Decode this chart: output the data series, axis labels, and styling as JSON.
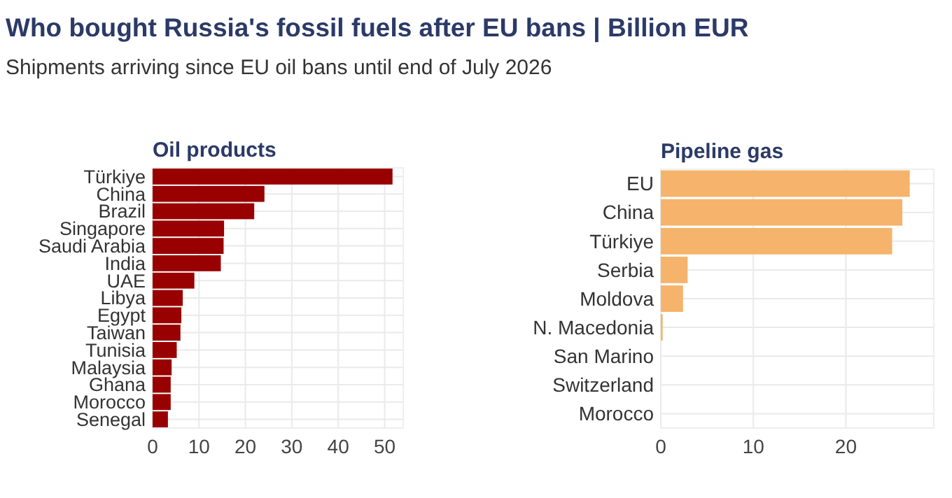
{
  "chart_data": [
    {
      "type": "other",
      "title": "Who bought Russia's fossil fuels after EU bans | Billion EUR",
      "subtitle": "Shipments arriving since EU oil bans until end of July 2026"
    },
    {
      "type": "bar",
      "orientation": "horizontal",
      "title": "Oil products",
      "categories": [
        "Türkiye",
        "China",
        "Brazil",
        "Singapore",
        "Saudi Arabia",
        "India",
        "UAE",
        "Libya",
        "Egypt",
        "Taiwan",
        "Tunisia",
        "Malaysia",
        "Ghana",
        "Morocco",
        "Senegal"
      ],
      "values": [
        51.7,
        24.1,
        21.9,
        15.4,
        15.3,
        14.7,
        9.0,
        6.5,
        6.2,
        6.0,
        5.2,
        4.1,
        3.9,
        3.9,
        3.3
      ],
      "color": "#990000",
      "xlim": [
        0,
        54
      ],
      "xticks": [
        0,
        10,
        20,
        30,
        40,
        50
      ],
      "grid": true
    },
    {
      "type": "bar",
      "orientation": "horizontal",
      "title": "Pipeline gas",
      "categories": [
        "EU",
        "China",
        "Türkiye",
        "Serbia",
        "Moldova",
        "N. Macedonia",
        "San Marino",
        "Switzerland",
        "Morocco"
      ],
      "values": [
        26.9,
        26.1,
        25.0,
        2.9,
        2.4,
        0.2,
        0,
        0,
        0
      ],
      "color": "#f5b36b",
      "xlim": [
        0,
        29.5
      ],
      "xticks": [
        0,
        10,
        20
      ],
      "grid": true
    }
  ]
}
